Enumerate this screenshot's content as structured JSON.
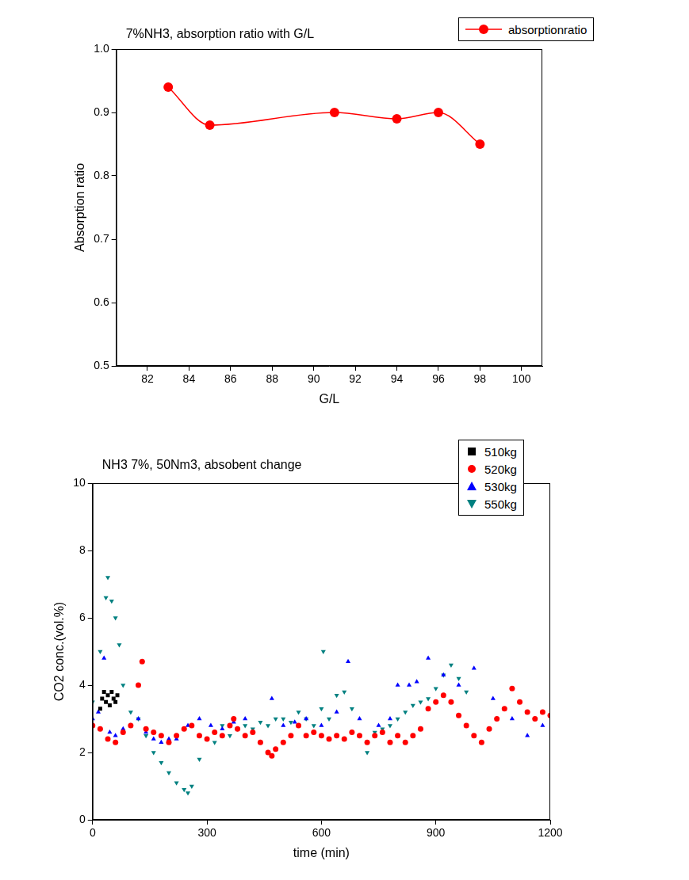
{
  "chart_data": [
    {
      "type": "line",
      "title": "7%NH3, absorption ratio with G/L",
      "x_label": "G/L",
      "y_label": "Absorption ratio",
      "xlim": [
        80.5,
        101
      ],
      "xticks": [
        82,
        84,
        86,
        88,
        90,
        92,
        94,
        96,
        98,
        100
      ],
      "ylim": [
        0.5,
        1
      ],
      "yticks": [
        0.5,
        0.6,
        0.7,
        0.8,
        0.9,
        {
          "value": 1,
          "label": "1.0"
        }
      ],
      "grid": false,
      "legend": "upper right",
      "series": [
        {
          "name": "absorptionratio",
          "color": "#ff0000",
          "marker": "circle",
          "line_style": "solid",
          "x": [
            83,
            85,
            91,
            94,
            96,
            98
          ],
          "values": [
            0.94,
            0.88,
            0.9,
            0.89,
            0.9,
            0.85
          ]
        }
      ]
    },
    {
      "type": "scatter",
      "title": "NH3 7%, 50Nm3, absobent change",
      "x_label": "time (min)",
      "y_label": "CO2 conc.(vol.%)",
      "xlim": [
        0,
        1200
      ],
      "xticks": [
        0,
        300,
        600,
        900,
        1200
      ],
      "ylim": [
        0,
        10
      ],
      "yticks": [
        0,
        2,
        4,
        6,
        8,
        10
      ],
      "grid": false,
      "legend": "upper right",
      "series": [
        {
          "name": "510kg",
          "color": "#000000",
          "marker": "square",
          "x": [
            20,
            25,
            30,
            35,
            40,
            45,
            50,
            55,
            60,
            65
          ],
          "values": [
            3.3,
            3.6,
            3.8,
            3.5,
            3.7,
            3.4,
            3.8,
            3.6,
            3.5,
            3.7
          ]
        },
        {
          "name": "520kg",
          "color": "#ff0000",
          "marker": "circle",
          "x": [
            0,
            20,
            40,
            60,
            80,
            100,
            120,
            130,
            140,
            160,
            180,
            200,
            220,
            240,
            260,
            280,
            300,
            320,
            340,
            360,
            370,
            380,
            400,
            420,
            440,
            460,
            470,
            480,
            500,
            520,
            540,
            560,
            580,
            600,
            620,
            640,
            660,
            680,
            700,
            720,
            740,
            760,
            780,
            800,
            820,
            840,
            860,
            880,
            900,
            920,
            940,
            960,
            980,
            1000,
            1020,
            1040,
            1060,
            1080,
            1100,
            1120,
            1140,
            1160,
            1180,
            1200
          ],
          "values": [
            2.8,
            2.7,
            2.4,
            2.3,
            2.6,
            2.8,
            4.0,
            4.7,
            2.7,
            2.6,
            2.5,
            2.3,
            2.5,
            2.7,
            2.8,
            2.5,
            2.4,
            2.6,
            2.5,
            2.8,
            3.0,
            2.7,
            2.5,
            2.6,
            2.3,
            2.0,
            1.9,
            2.1,
            2.3,
            2.5,
            2.8,
            2.5,
            2.6,
            2.5,
            2.4,
            2.5,
            2.4,
            2.6,
            2.5,
            2.3,
            2.5,
            2.6,
            2.3,
            2.5,
            2.3,
            2.5,
            2.7,
            3.3,
            3.5,
            3.7,
            3.5,
            3.1,
            2.8,
            2.5,
            2.3,
            2.7,
            3.0,
            3.3,
            3.9,
            3.5,
            3.2,
            3.0,
            3.2,
            3.1
          ]
        },
        {
          "name": "530kg",
          "color": "#0000ff",
          "marker": "triangle",
          "x": [
            0,
            15,
            30,
            45,
            60,
            80,
            100,
            120,
            140,
            160,
            180,
            200,
            220,
            250,
            280,
            310,
            340,
            370,
            400,
            420,
            440,
            470,
            500,
            530,
            560,
            600,
            640,
            670,
            700,
            750,
            780,
            800,
            830,
            850,
            880,
            920,
            960,
            1000,
            1050,
            1100,
            1140,
            1180
          ],
          "values": [
            3.0,
            3.2,
            4.8,
            2.6,
            2.5,
            2.7,
            2.8,
            3.0,
            2.6,
            2.4,
            2.3,
            2.4,
            2.4,
            2.8,
            3.0,
            2.8,
            2.7,
            2.9,
            3.0,
            2.6,
            2.3,
            3.6,
            2.8,
            2.9,
            3.0,
            2.8,
            3.2,
            4.7,
            3.0,
            2.8,
            3.0,
            4.0,
            4.0,
            4.1,
            4.8,
            4.3,
            4.0,
            4.5,
            3.6,
            3.0,
            2.5,
            2.8
          ]
        },
        {
          "name": "550kg",
          "color": "#008080",
          "marker": "triangle-down",
          "x": [
            0,
            20,
            35,
            40,
            50,
            60,
            70,
            80,
            100,
            120,
            140,
            160,
            180,
            200,
            220,
            240,
            250,
            260,
            280,
            300,
            320,
            340,
            360,
            380,
            400,
            420,
            440,
            460,
            480,
            500,
            520,
            540,
            560,
            580,
            600,
            605,
            620,
            640,
            660,
            680,
            700,
            720,
            740,
            760,
            780,
            800,
            820,
            840,
            860,
            880,
            900,
            920,
            940,
            960,
            980
          ],
          "values": [
            3.5,
            5.0,
            6.6,
            7.2,
            6.5,
            6.0,
            5.2,
            4.0,
            3.2,
            3.0,
            2.5,
            2.0,
            1.7,
            1.4,
            1.1,
            0.9,
            0.8,
            1.0,
            1.8,
            2.4,
            2.3,
            2.8,
            2.5,
            2.7,
            2.8,
            2.7,
            2.9,
            2.8,
            3.0,
            3.0,
            2.9,
            3.2,
            3.0,
            2.8,
            3.3,
            5.0,
            3.0,
            3.7,
            3.8,
            3.3,
            2.5,
            2.0,
            2.6,
            2.7,
            2.8,
            3.0,
            3.2,
            3.4,
            3.5,
            3.6,
            3.9,
            4.3,
            4.6,
            4.2,
            3.8
          ]
        }
      ]
    }
  ]
}
